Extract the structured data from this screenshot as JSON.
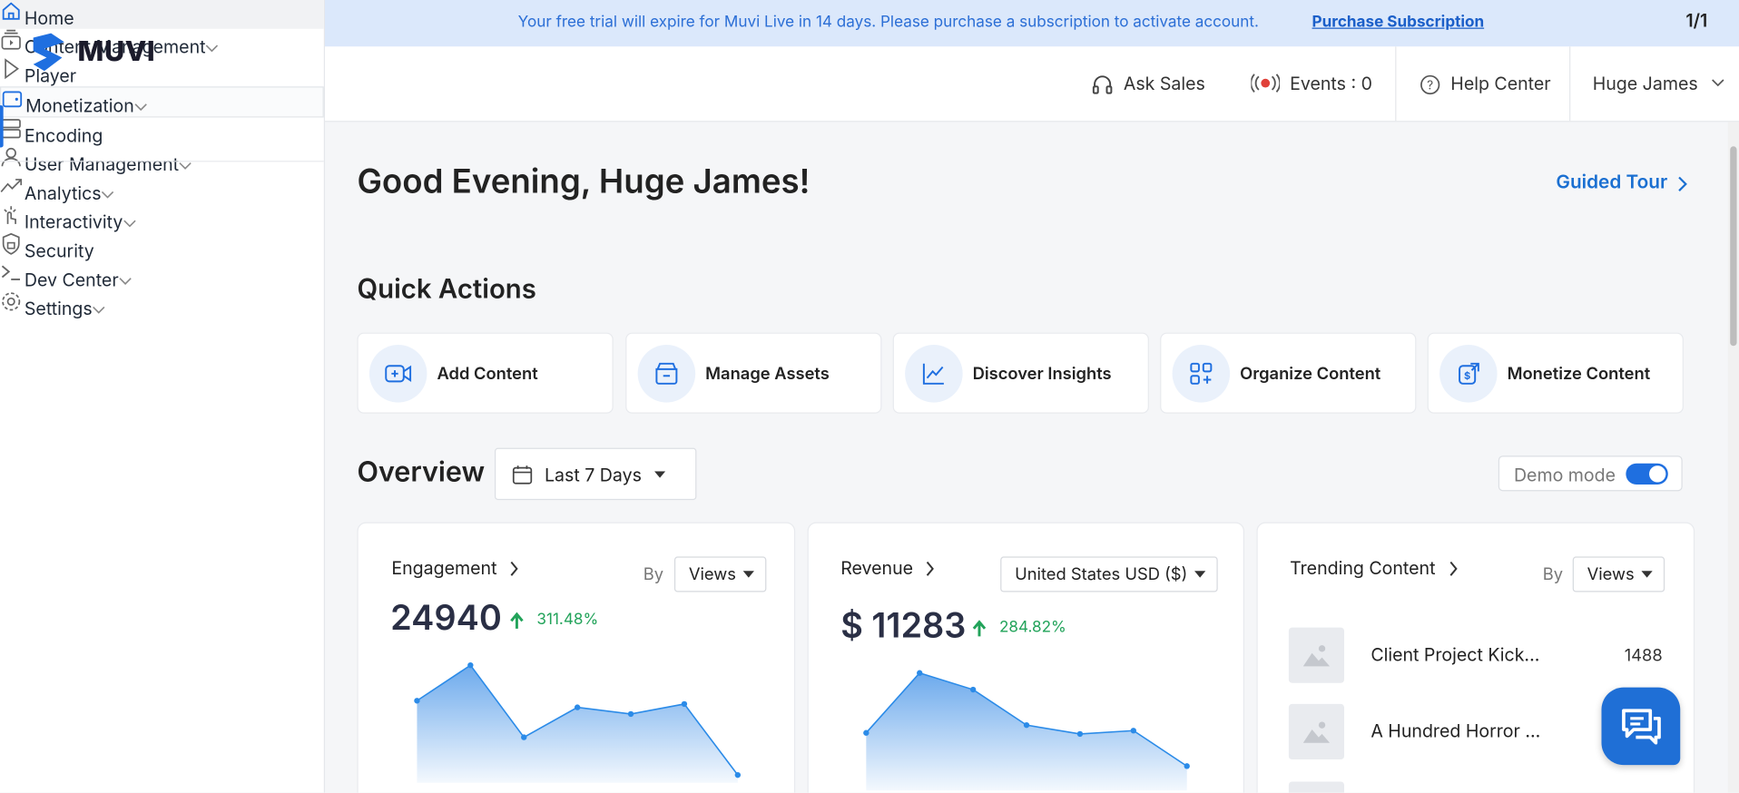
{
  "banner": {
    "message": "Your free trial will expire for Muvi Live in 14 days. Please purchase a subscription to activate account.",
    "link": "Purchase Subscription",
    "counter": "1/1"
  },
  "logo": "MUVI",
  "nav": [
    "Home",
    "Content Management",
    "Player",
    "Monetization",
    "Encoding",
    "User Management",
    "Analytics",
    "Interactivity",
    "Security",
    "Dev Center",
    "Settings"
  ],
  "header": {
    "ask_sales": "Ask Sales",
    "events": "Events : 0",
    "help": "Help Center",
    "user": "Huge James"
  },
  "greeting": "Good Evening, Huge James!",
  "guided_tour": "Guided Tour",
  "quick_actions": {
    "title": "Quick Actions",
    "items": [
      "Add Content",
      "Manage Assets",
      "Discover Insights",
      "Organize Content",
      "Monetize Content"
    ]
  },
  "overview": {
    "title": "Overview",
    "range": "Last 7 Days",
    "demo": "Demo mode"
  },
  "cards": {
    "engagement": {
      "title": "Engagement",
      "by": "By",
      "select": "Views",
      "value": "24940",
      "change": "311.48%",
      "points": [
        74,
        106,
        41,
        68,
        62,
        71,
        7
      ]
    },
    "revenue": {
      "title": "Revenue",
      "select": "United States USD ($)",
      "value": "$ 11283",
      "change": "284.82%",
      "points": [
        52,
        106,
        91,
        59,
        51,
        54,
        22
      ]
    },
    "trending": {
      "title": "Trending Content",
      "by": "By",
      "select": "Views",
      "items": [
        {
          "title": "Client Project Kick...",
          "count": "1488"
        },
        {
          "title": "A Hundred Horror ..."
        }
      ]
    }
  }
}
